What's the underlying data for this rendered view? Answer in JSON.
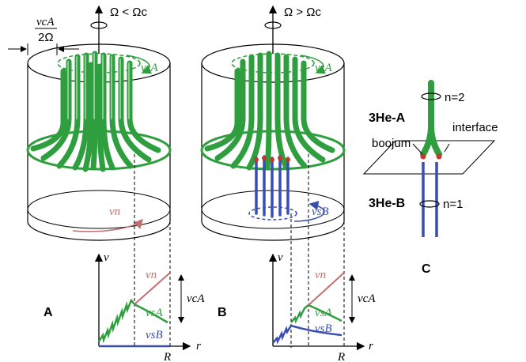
{
  "panel_a": {
    "label": "A",
    "rotation_label": "Ω < Ωc",
    "vca_num": "vcA",
    "vca_den": "2Ω",
    "vsa_label": "vsA",
    "vn_label": "vn"
  },
  "panel_b": {
    "label": "B",
    "rotation_label": "Ω > Ωc",
    "vsa_label": "vsA",
    "vsb_label": "vsB"
  },
  "panel_c": {
    "label": "C",
    "he_a": "3He-A",
    "he_b": "3He-B",
    "n_top": "n=2",
    "n_bottom": "n=1",
    "interface": "interface",
    "boojum": "boojum"
  },
  "graph": {
    "v_axis": "v",
    "r_axis": "r",
    "R": "R",
    "vn": "vn",
    "vsa": "vsA",
    "vsb": "vsB",
    "vca": "vcA"
  },
  "colors": {
    "green": "#2e9e3e",
    "red": "#c0706e",
    "blue": "#3a4db0"
  }
}
